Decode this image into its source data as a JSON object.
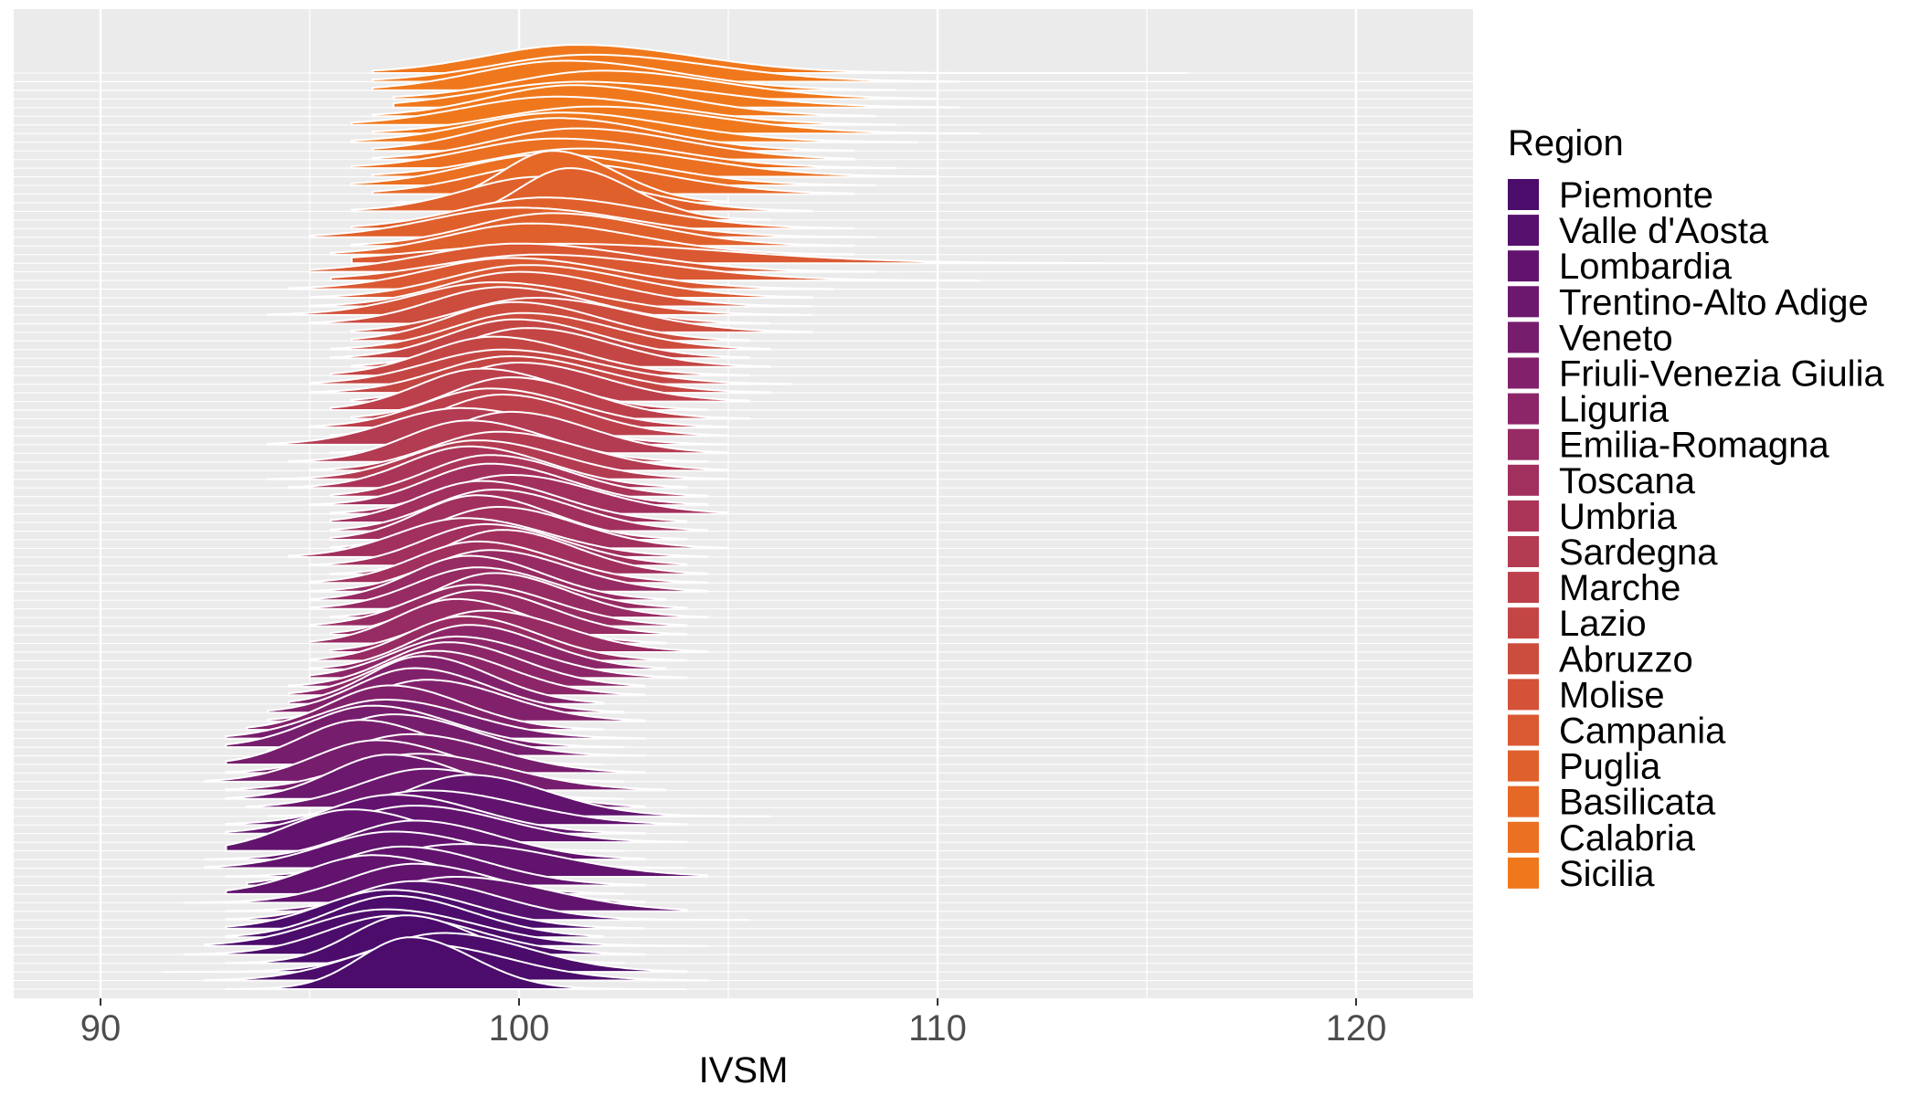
{
  "chart_data": {
    "type": "ridgeline",
    "xlabel": "IVSM",
    "ylabel": "",
    "xlim": [
      88,
      123
    ],
    "x_ticks": [
      90,
      100,
      110,
      120
    ],
    "grid": true,
    "background": "#ebebeb",
    "legend": {
      "title": "Region",
      "position": "right"
    },
    "series": [
      {
        "name": "Piemonte",
        "color": "#4b0c6b",
        "provinces": [
          {
            "mode": 97.4,
            "sd": 1.2,
            "min": 93.0,
            "max": 104.0
          },
          {
            "mode": 97.6,
            "sd": 1.7,
            "min": 92.5,
            "max": 104.5
          },
          {
            "mode": 98.2,
            "sd": 1.6,
            "min": 91.5,
            "max": 104.0
          },
          {
            "mode": 97.3,
            "sd": 1.3,
            "min": 93.0,
            "max": 102.5
          },
          {
            "mode": 97.0,
            "sd": 1.6,
            "min": 92.0,
            "max": 103.0
          },
          {
            "mode": 96.8,
            "sd": 1.7,
            "min": 92.5,
            "max": 104.5
          },
          {
            "mode": 97.0,
            "sd": 1.5,
            "min": 93.0,
            "max": 102.0
          },
          {
            "mode": 96.9,
            "sd": 1.6,
            "min": 93.0,
            "max": 103.0
          }
        ]
      },
      {
        "name": "Valle d'Aosta",
        "color": "#56106e",
        "provinces": [
          {
            "mode": 97.5,
            "sd": 1.6,
            "min": 93.0,
            "max": 105.5
          }
        ]
      },
      {
        "name": "Lombardia",
        "color": "#61136e",
        "provinces": [
          {
            "mode": 98.5,
            "sd": 1.8,
            "min": 93.0,
            "max": 104.0
          },
          {
            "mode": 97.5,
            "sd": 1.6,
            "min": 92.0,
            "max": 103.0
          },
          {
            "mode": 96.5,
            "sd": 1.6,
            "min": 93.0,
            "max": 102.5
          },
          {
            "mode": 97.2,
            "sd": 1.6,
            "min": 93.5,
            "max": 103.0
          },
          {
            "mode": 98.6,
            "sd": 1.9,
            "min": 93.0,
            "max": 104.5
          },
          {
            "mode": 97.0,
            "sd": 1.7,
            "min": 92.5,
            "max": 104.0
          },
          {
            "mode": 97.5,
            "sd": 1.6,
            "min": 92.5,
            "max": 103.0
          },
          {
            "mode": 96.0,
            "sd": 1.5,
            "min": 93.0,
            "max": 102.5
          },
          {
            "mode": 97.5,
            "sd": 1.7,
            "min": 93.5,
            "max": 104.0
          },
          {
            "mode": 97.0,
            "sd": 1.6,
            "min": 93.0,
            "max": 103.0
          },
          {
            "mode": 97.8,
            "sd": 1.8,
            "min": 93.0,
            "max": 104.0
          },
          {
            "mode": 98.8,
            "sd": 1.5,
            "min": 94.0,
            "max": 106.0
          }
        ]
      },
      {
        "name": "Trentino-Alto Adige",
        "color": "#6c186e",
        "provinces": [
          {
            "mode": 97.8,
            "sd": 1.6,
            "min": 93.5,
            "max": 103.0
          },
          {
            "mode": 96.9,
            "sd": 1.4,
            "min": 93.0,
            "max": 102.5
          }
        ]
      },
      {
        "name": "Veneto",
        "color": "#771d6d",
        "provinces": [
          {
            "mode": 97.6,
            "sd": 1.7,
            "min": 93.0,
            "max": 103.5
          },
          {
            "mode": 96.6,
            "sd": 1.5,
            "min": 92.5,
            "max": 102.5
          },
          {
            "mode": 97.4,
            "sd": 1.6,
            "min": 93.0,
            "max": 103.0
          },
          {
            "mode": 96.2,
            "sd": 1.4,
            "min": 93.0,
            "max": 102.0
          },
          {
            "mode": 97.0,
            "sd": 1.5,
            "min": 94.0,
            "max": 103.0
          },
          {
            "mode": 96.5,
            "sd": 1.5,
            "min": 93.0,
            "max": 102.5
          },
          {
            "mode": 96.8,
            "sd": 1.6,
            "min": 93.0,
            "max": 103.0
          }
        ]
      },
      {
        "name": "Friuli-Venezia Giulia",
        "color": "#82216b",
        "provinces": [
          {
            "mode": 96.9,
            "sd": 1.4,
            "min": 93.5,
            "max": 102.0
          },
          {
            "mode": 97.8,
            "sd": 1.5,
            "min": 94.0,
            "max": 103.0
          },
          {
            "mode": 97.5,
            "sd": 1.4,
            "min": 94.0,
            "max": 102.5
          },
          {
            "mode": 97.7,
            "sd": 1.3,
            "min": 94.5,
            "max": 102.0
          }
        ]
      },
      {
        "name": "Liguria",
        "color": "#8c2668",
        "provinces": [
          {
            "mode": 98.0,
            "sd": 1.4,
            "min": 94.5,
            "max": 103.0
          },
          {
            "mode": 98.3,
            "sd": 1.4,
            "min": 94.5,
            "max": 103.0
          },
          {
            "mode": 98.5,
            "sd": 1.5,
            "min": 95.0,
            "max": 104.0
          },
          {
            "mode": 98.8,
            "sd": 1.4,
            "min": 95.0,
            "max": 103.5
          }
        ]
      },
      {
        "name": "Emilia-Romagna",
        "color": "#972b63",
        "provinces": [
          {
            "mode": 98.7,
            "sd": 1.4,
            "min": 95.0,
            "max": 104.0
          },
          {
            "mode": 99.2,
            "sd": 1.5,
            "min": 95.5,
            "max": 104.5
          },
          {
            "mode": 98.5,
            "sd": 1.4,
            "min": 95.0,
            "max": 103.5
          },
          {
            "mode": 99.0,
            "sd": 1.4,
            "min": 95.5,
            "max": 104.0
          },
          {
            "mode": 98.9,
            "sd": 1.5,
            "min": 95.0,
            "max": 104.0
          },
          {
            "mode": 99.4,
            "sd": 1.4,
            "min": 95.5,
            "max": 104.5
          },
          {
            "mode": 99.0,
            "sd": 1.5,
            "min": 95.0,
            "max": 104.0
          },
          {
            "mode": 98.8,
            "sd": 1.4,
            "min": 95.0,
            "max": 103.5
          },
          {
            "mode": 99.3,
            "sd": 1.5,
            "min": 95.0,
            "max": 104.5
          }
        ]
      },
      {
        "name": "Toscana",
        "color": "#a1305e",
        "provinces": [
          {
            "mode": 99.0,
            "sd": 1.5,
            "min": 95.0,
            "max": 104.5
          },
          {
            "mode": 99.6,
            "sd": 1.4,
            "min": 95.5,
            "max": 104.5
          },
          {
            "mode": 99.2,
            "sd": 1.5,
            "min": 95.0,
            "max": 104.0
          },
          {
            "mode": 98.7,
            "sd": 1.6,
            "min": 94.5,
            "max": 104.5
          },
          {
            "mode": 99.5,
            "sd": 1.5,
            "min": 95.5,
            "max": 105.0
          },
          {
            "mode": 99.0,
            "sd": 1.4,
            "min": 95.5,
            "max": 104.0
          },
          {
            "mode": 99.4,
            "sd": 1.5,
            "min": 95.5,
            "max": 104.5
          },
          {
            "mode": 99.1,
            "sd": 1.5,
            "min": 95.5,
            "max": 104.0
          },
          {
            "mode": 99.8,
            "sd": 1.6,
            "min": 95.5,
            "max": 105.0
          },
          {
            "mode": 99.3,
            "sd": 1.5,
            "min": 95.0,
            "max": 104.5
          }
        ]
      },
      {
        "name": "Umbria",
        "color": "#aa3558",
        "provinces": [
          {
            "mode": 99.3,
            "sd": 1.5,
            "min": 95.5,
            "max": 104.5
          },
          {
            "mode": 98.8,
            "sd": 1.5,
            "min": 94.5,
            "max": 104.0
          }
        ]
      },
      {
        "name": "Sardegna",
        "color": "#b33b52",
        "provinces": [
          {
            "mode": 99.0,
            "sd": 1.6,
            "min": 94.0,
            "max": 105.0
          },
          {
            "mode": 99.5,
            "sd": 1.6,
            "min": 95.0,
            "max": 105.0
          },
          {
            "mode": 98.8,
            "sd": 1.5,
            "min": 94.5,
            "max": 104.5
          },
          {
            "mode": 99.8,
            "sd": 1.5,
            "min": 95.5,
            "max": 105.0
          },
          {
            "mode": 98.6,
            "sd": 1.7,
            "min": 94.0,
            "max": 105.0
          }
        ]
      },
      {
        "name": "Marche",
        "color": "#bc404b",
        "provinces": [
          {
            "mode": 99.6,
            "sd": 1.5,
            "min": 95.5,
            "max": 105.0
          },
          {
            "mode": 99.3,
            "sd": 1.6,
            "min": 95.0,
            "max": 105.0
          },
          {
            "mode": 99.8,
            "sd": 1.5,
            "min": 96.0,
            "max": 105.5
          },
          {
            "mode": 99.1,
            "sd": 1.5,
            "min": 95.5,
            "max": 104.5
          },
          {
            "mode": 100.0,
            "sd": 1.6,
            "min": 96.0,
            "max": 105.5
          }
        ]
      },
      {
        "name": "Lazio",
        "color": "#c44644",
        "provinces": [
          {
            "mode": 99.8,
            "sd": 1.7,
            "min": 95.0,
            "max": 106.0
          },
          {
            "mode": 99.6,
            "sd": 1.8,
            "min": 95.0,
            "max": 106.5
          },
          {
            "mode": 99.4,
            "sd": 1.6,
            "min": 95.5,
            "max": 105.5
          },
          {
            "mode": 100.2,
            "sd": 1.6,
            "min": 96.0,
            "max": 106.0
          },
          {
            "mode": 99.9,
            "sd": 1.6,
            "min": 95.5,
            "max": 105.5
          }
        ]
      },
      {
        "name": "Abruzzo",
        "color": "#cc4c3e",
        "provinces": [
          {
            "mode": 100.1,
            "sd": 1.7,
            "min": 95.5,
            "max": 106.0
          },
          {
            "mode": 99.9,
            "sd": 1.6,
            "min": 96.0,
            "max": 105.5
          },
          {
            "mode": 100.4,
            "sd": 1.8,
            "min": 96.0,
            "max": 107.0
          },
          {
            "mode": 99.6,
            "sd": 1.7,
            "min": 95.0,
            "max": 106.0
          }
        ]
      },
      {
        "name": "Molise",
        "color": "#d35238",
        "provinces": [
          {
            "mode": 99.4,
            "sd": 1.9,
            "min": 94.0,
            "max": 107.0
          },
          {
            "mode": 100.0,
            "sd": 1.8,
            "min": 95.0,
            "max": 107.0
          }
        ]
      },
      {
        "name": "Campania",
        "color": "#da5932",
        "provinces": [
          {
            "mode": 100.2,
            "sd": 1.9,
            "min": 95.0,
            "max": 107.0
          },
          {
            "mode": 99.8,
            "sd": 2.0,
            "min": 94.5,
            "max": 107.5
          },
          {
            "mode": 100.5,
            "sd": 2.4,
            "min": 95.5,
            "max": 111.0
          },
          {
            "mode": 100.0,
            "sd": 2.2,
            "min": 95.0,
            "max": 108.5
          },
          {
            "mode": 101.0,
            "sd": 3.2,
            "min": 96.0,
            "max": 120.0
          }
        ]
      },
      {
        "name": "Puglia",
        "color": "#e0602c",
        "provinces": [
          {
            "mode": 100.3,
            "sd": 2.0,
            "min": 95.5,
            "max": 108.0
          },
          {
            "mode": 100.8,
            "sd": 1.9,
            "min": 96.0,
            "max": 108.0
          },
          {
            "mode": 100.0,
            "sd": 2.1,
            "min": 95.0,
            "max": 108.5
          },
          {
            "mode": 100.6,
            "sd": 2.0,
            "min": 96.0,
            "max": 108.0
          },
          {
            "mode": 101.2,
            "sd": 1.2,
            "min": 97.5,
            "max": 106.0
          },
          {
            "mode": 100.5,
            "sd": 1.8,
            "min": 96.0,
            "max": 107.0
          }
        ]
      },
      {
        "name": "Basilicata",
        "color": "#e66827",
        "provinces": [
          {
            "mode": 100.8,
            "sd": 1.2,
            "min": 97.0,
            "max": 105.0
          },
          {
            "mode": 101.0,
            "sd": 2.0,
            "min": 96.5,
            "max": 108.0
          }
        ]
      },
      {
        "name": "Calabria",
        "color": "#eb7021",
        "provinces": [
          {
            "mode": 100.7,
            "sd": 2.0,
            "min": 96.0,
            "max": 108.5
          },
          {
            "mode": 101.5,
            "sd": 2.2,
            "min": 96.5,
            "max": 110.0
          },
          {
            "mode": 100.9,
            "sd": 2.1,
            "min": 96.0,
            "max": 109.0
          },
          {
            "mode": 101.4,
            "sd": 2.0,
            "min": 96.5,
            "max": 108.0
          },
          {
            "mode": 100.9,
            "sd": 1.9,
            "min": 96.5,
            "max": 108.0
          }
        ]
      },
      {
        "name": "Sicilia",
        "color": "#f0781c",
        "provinces": [
          {
            "mode": 101.0,
            "sd": 2.1,
            "min": 96.0,
            "max": 109.5
          },
          {
            "mode": 101.8,
            "sd": 2.3,
            "min": 96.5,
            "max": 111.0
          },
          {
            "mode": 100.9,
            "sd": 2.2,
            "min": 96.0,
            "max": 109.0
          },
          {
            "mode": 101.3,
            "sd": 2.0,
            "min": 96.5,
            "max": 108.5
          },
          {
            "mode": 101.5,
            "sd": 2.4,
            "min": 97.0,
            "max": 110.5
          },
          {
            "mode": 102.0,
            "sd": 2.2,
            "min": 97.0,
            "max": 110.0
          },
          {
            "mode": 101.1,
            "sd": 2.1,
            "min": 96.5,
            "max": 109.0
          },
          {
            "mode": 101.7,
            "sd": 2.3,
            "min": 96.5,
            "max": 110.5
          },
          {
            "mode": 101.4,
            "sd": 2.2,
            "min": 96.5,
            "max": 116.0
          }
        ]
      }
    ]
  }
}
